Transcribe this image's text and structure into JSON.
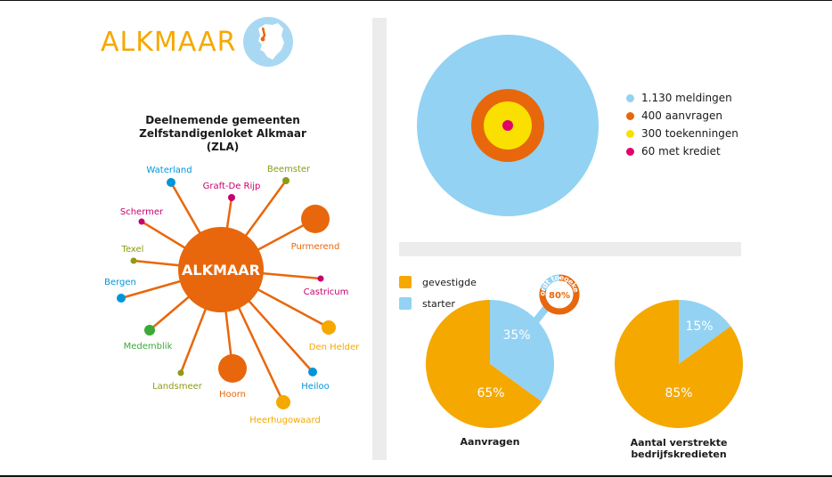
{
  "header": {
    "city": "ALKMAAR"
  },
  "network": {
    "title_line1": "Deelnemende gemeenten",
    "title_line2": "Zelfstandigenloket Alkmaar (ZLA)",
    "center": "ALKMAAR",
    "nodes": [
      {
        "label": "Waterland",
        "color": "#0095d9"
      },
      {
        "label": "Graft-De Rijp",
        "color": "#c8006e"
      },
      {
        "label": "Beemster",
        "color": "#8c9a14"
      },
      {
        "label": "Schermer",
        "color": "#c8006e"
      },
      {
        "label": "Purmerend",
        "color": "#e8670c"
      },
      {
        "label": "Texel",
        "color": "#8c9a14"
      },
      {
        "label": "Castricum",
        "color": "#c8006e"
      },
      {
        "label": "Bergen",
        "color": "#0095d9"
      },
      {
        "label": "Den Helder",
        "color": "#f5a800"
      },
      {
        "label": "Medemblik",
        "color": "#3aa935"
      },
      {
        "label": "Heiloo",
        "color": "#0095d9"
      },
      {
        "label": "Landsmeer",
        "color": "#8c9a14"
      },
      {
        "label": "Hoorn",
        "color": "#e8670c"
      },
      {
        "label": "Heerhugowaard",
        "color": "#f5a800"
      }
    ]
  },
  "colors": {
    "light_blue": "#93d2f2",
    "orange": "#e8670c",
    "yellow": "#f9e000",
    "magenta": "#e2006a",
    "amber": "#f5a800",
    "network_orange": "#e8670c"
  },
  "chart_data": [
    {
      "type": "nested-circles",
      "series": [
        {
          "name": "1.130 meldingen",
          "value": 1130,
          "color": "#93d2f2"
        },
        {
          "name": "400 aanvragen",
          "value": 400,
          "color": "#e8670c"
        },
        {
          "name": "300 toekenningen",
          "value": 300,
          "color": "#f9e000"
        },
        {
          "name": "60 met krediet",
          "value": 60,
          "color": "#e2006a"
        }
      ]
    },
    {
      "type": "pie",
      "title": "Aanvragen",
      "slices": [
        {
          "name": "starter",
          "value": 35,
          "label": "35%",
          "color": "#93d2f2"
        },
        {
          "name": "gevestigde",
          "value": 65,
          "label": "65%",
          "color": "#f5a800"
        }
      ],
      "callout": {
        "label": "wordt toegekend",
        "value": 80,
        "value_label": "80%"
      }
    },
    {
      "type": "pie",
      "title_line1": "Aantal verstrekte",
      "title_line2": "bedrijfskredieten",
      "slices": [
        {
          "name": "starter",
          "value": 15,
          "label": "15%",
          "color": "#93d2f2"
        },
        {
          "name": "gevestigde",
          "value": 85,
          "label": "85%",
          "color": "#f5a800"
        }
      ]
    }
  ],
  "pie_legend": [
    {
      "label": "gevestigde",
      "color": "#f5a800"
    },
    {
      "label": "starter",
      "color": "#93d2f2"
    }
  ]
}
